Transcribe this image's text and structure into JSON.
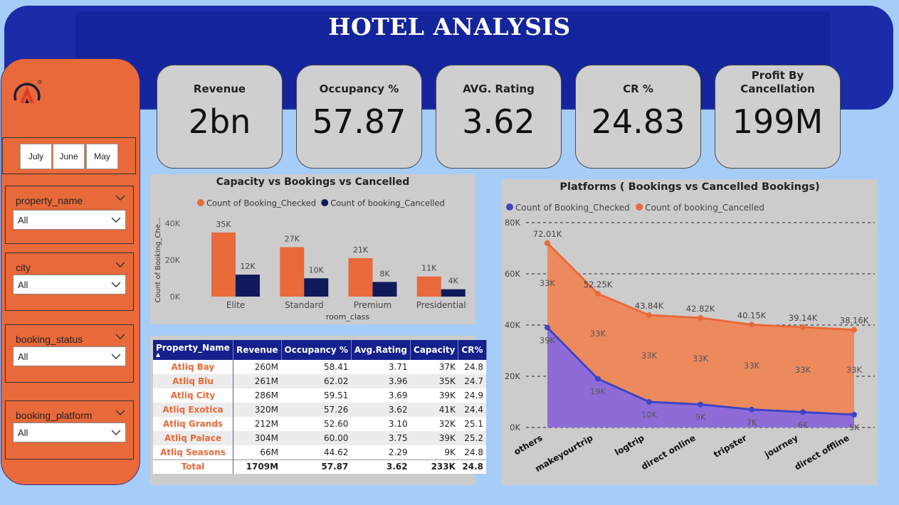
{
  "title": "HOTEL ANALYSIS",
  "colors": {
    "accent_orange": "#e8693a",
    "navy": "#14249c",
    "checked_bar": "#e8693a",
    "cancelled_bar": "#101a5a",
    "line_checked": "#3f44c4",
    "area_checked": "#8e6cd8",
    "area_cancelled": "#e88a62"
  },
  "logo": {
    "icon": "logo-icon"
  },
  "month_slicer": {
    "items": [
      "July",
      "June",
      "May"
    ]
  },
  "filters": [
    {
      "label": "property_name",
      "value": "All"
    },
    {
      "label": "city",
      "value": "All"
    },
    {
      "label": "booking_status",
      "value": "All"
    },
    {
      "label": "booking_platform",
      "value": "All"
    }
  ],
  "kpis": [
    {
      "label": "Revenue",
      "value": "2bn"
    },
    {
      "label": "Occupancy %",
      "value": "57.87"
    },
    {
      "label": "AVG. Rating",
      "value": "3.62"
    },
    {
      "label": "CR %",
      "value": "24.83"
    },
    {
      "label": "Profit By Cancellation",
      "value": "199M"
    }
  ],
  "table": {
    "headers": [
      "Property_Name",
      "Revenue",
      "Occupancy %",
      "Avg.Rating",
      "Capacity",
      "CR%"
    ],
    "rows": [
      [
        "Atliq Bay",
        "260M",
        "58.41",
        "3.71",
        "37K",
        "24.8"
      ],
      [
        "Atliq Blu",
        "261M",
        "62.02",
        "3.96",
        "35K",
        "24.7"
      ],
      [
        "Atliq City",
        "286M",
        "59.51",
        "3.69",
        "39K",
        "24.9"
      ],
      [
        "Atliq Exotica",
        "320M",
        "57.26",
        "3.62",
        "41K",
        "24.4"
      ],
      [
        "Atliq Grands",
        "212M",
        "52.60",
        "3.10",
        "32K",
        "25.1"
      ],
      [
        "Atliq Palace",
        "304M",
        "60.00",
        "3.75",
        "39K",
        "25.2"
      ],
      [
        "Atliq Seasons",
        "66M",
        "44.62",
        "2.29",
        "9K",
        "24.8"
      ]
    ],
    "total": [
      "Total",
      "1709M",
      "57.87",
      "3.62",
      "233K",
      "24.8"
    ]
  },
  "chart_data": [
    {
      "type": "bar",
      "title": "Capacity vs Bookings vs Cancelled",
      "xlabel": "room_class",
      "ylabel": "Count of Booking_Che...",
      "categories": [
        "Elite",
        "Standard",
        "Premium",
        "Presidential"
      ],
      "ylim": [
        0,
        40000
      ],
      "yticks": [
        0,
        20000,
        40000
      ],
      "ytick_labels": [
        "0K",
        "20K",
        "40K"
      ],
      "series": [
        {
          "name": "Count of Booking_Checked",
          "values": [
            35000,
            27000,
            21000,
            11000
          ],
          "labels": [
            "35K",
            "27K",
            "21K",
            "11K"
          ],
          "color": "#e8693a"
        },
        {
          "name": "Count of booking_Cancelled",
          "values": [
            12000,
            10000,
            8000,
            4000
          ],
          "labels": [
            "12K",
            "10K",
            "8K",
            "4K"
          ],
          "color": "#101a5a"
        }
      ],
      "legend": "top"
    },
    {
      "type": "area",
      "title": "Platforms ( Bookings vs Cancelled Bookings)",
      "categories": [
        "others",
        "makeyourtrip",
        "logtrip",
        "direct online",
        "tripster",
        "journey",
        "direct offline"
      ],
      "ylim": [
        0,
        80000
      ],
      "yticks": [
        0,
        20000,
        40000,
        60000,
        80000
      ],
      "ytick_labels": [
        "0K",
        "20K",
        "40K",
        "60K",
        "80K"
      ],
      "series": [
        {
          "name": "Count of Booking_Checked",
          "values": [
            39000,
            19000,
            10000,
            9000,
            7000,
            6000,
            5000
          ],
          "labels": [
            "39K",
            "19K",
            "10K",
            "9K",
            "7K",
            "6K",
            "5K"
          ],
          "color": "#3f44c4"
        },
        {
          "name": "Count of booking_Cancelled",
          "values": [
            72010,
            52250,
            43840,
            42820,
            40150,
            39140,
            38160
          ],
          "labels": [
            "72.01K",
            "52.25K",
            "43.84K",
            "42.82K",
            "40.15K",
            "39.14K",
            "38.16K"
          ],
          "color": "#e8693a"
        }
      ],
      "mid_labels": [
        "33K",
        "33K",
        "33K",
        "33K",
        "33K",
        "33K",
        "33K"
      ],
      "legend": "top"
    }
  ]
}
